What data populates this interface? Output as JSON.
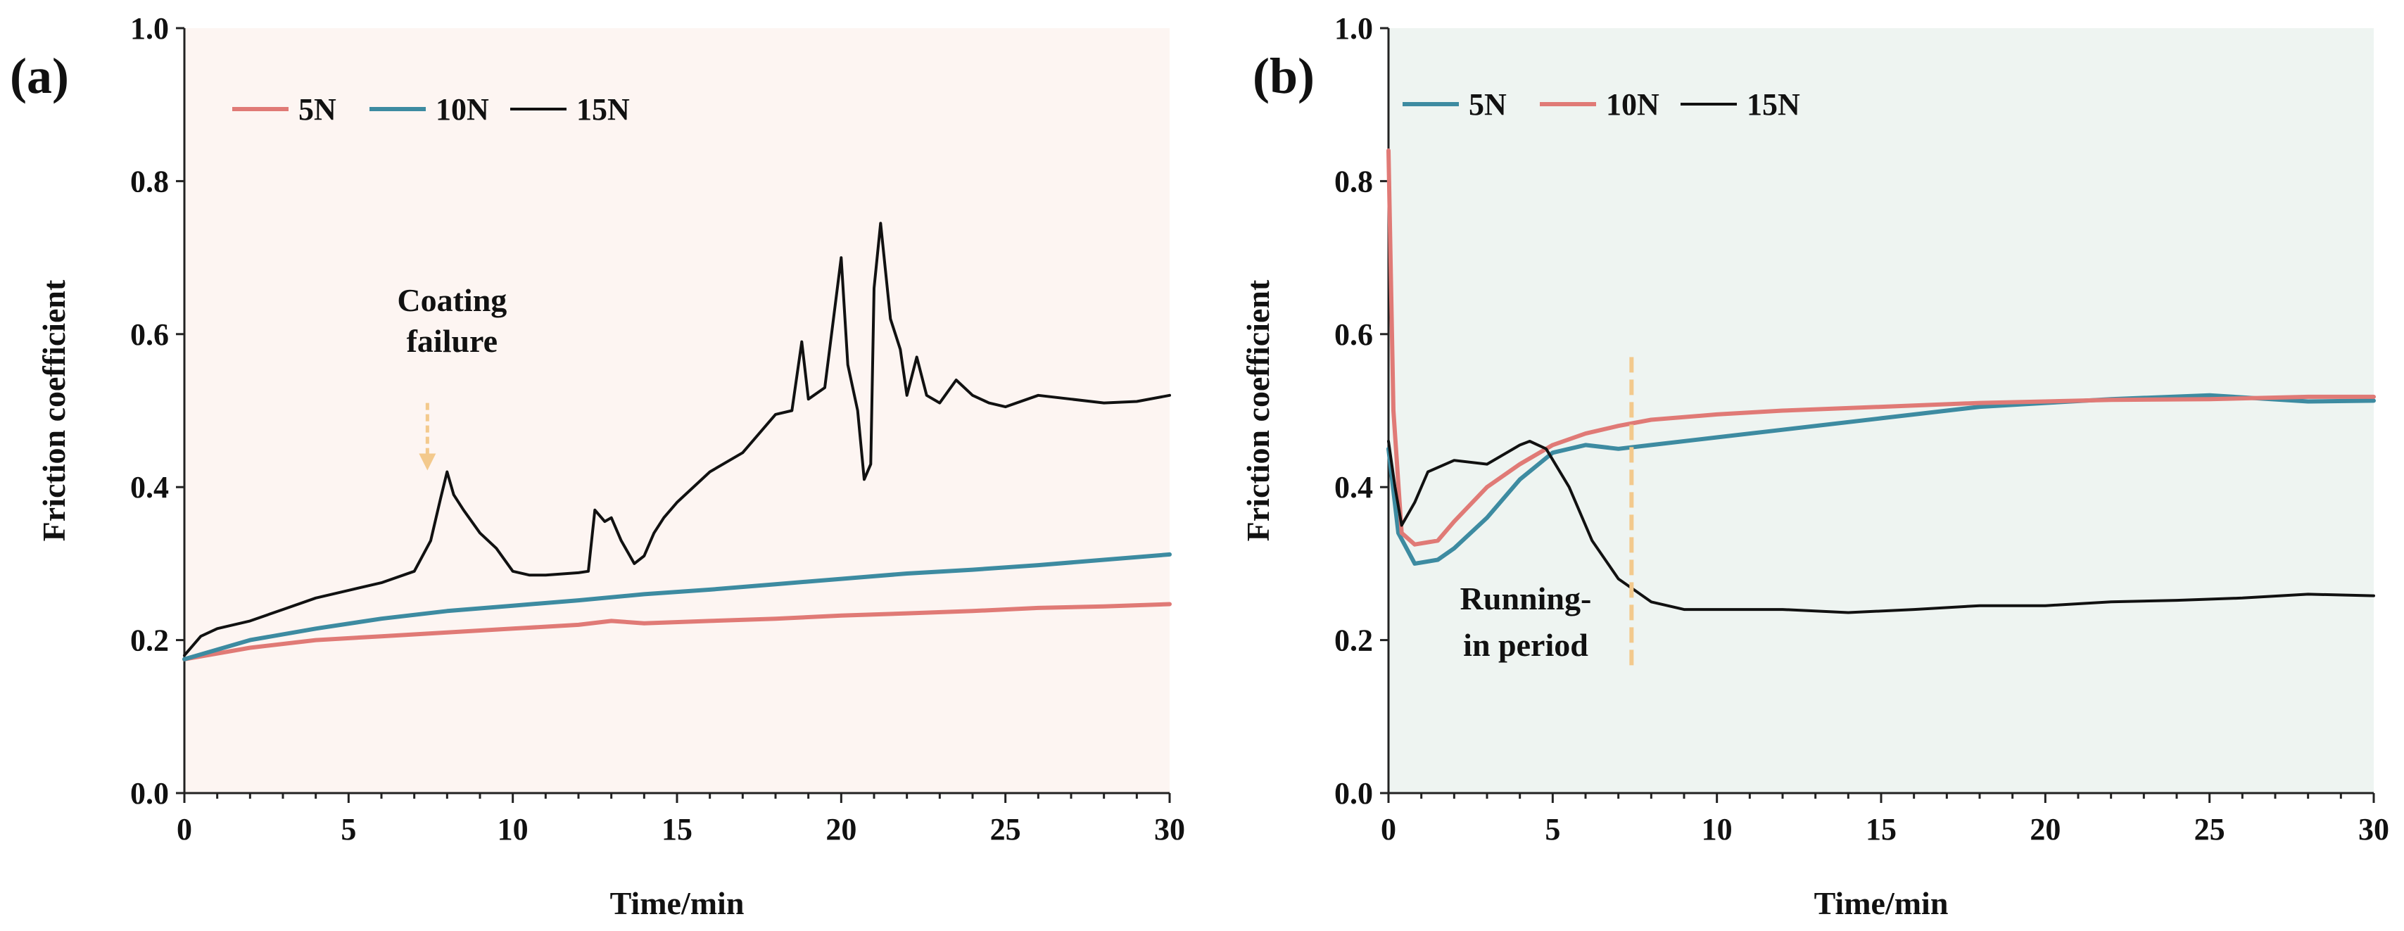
{
  "chart_data": [
    {
      "type": "line",
      "panel_label": "(a)",
      "xlabel": "Time/min",
      "ylabel": "Friction coefficient",
      "xlim": [
        0,
        30
      ],
      "ylim": [
        0.0,
        1.0
      ],
      "xticks": [
        "0",
        "5",
        "10",
        "15",
        "20",
        "25",
        "30"
      ],
      "yticks": [
        "0.0",
        "0.2",
        "0.4",
        "0.6",
        "0.8",
        "1.0"
      ],
      "background": "#fdf5f2",
      "grid": false,
      "legend_position": "top-left",
      "series": [
        {
          "name": "5N",
          "color": "#e07a76",
          "points": [
            [
              0,
              0.175
            ],
            [
              2,
              0.19
            ],
            [
              4,
              0.2
            ],
            [
              6,
              0.205
            ],
            [
              8,
              0.21
            ],
            [
              10,
              0.215
            ],
            [
              12,
              0.22
            ],
            [
              13,
              0.225
            ],
            [
              14,
              0.222
            ],
            [
              16,
              0.225
            ],
            [
              18,
              0.228
            ],
            [
              20,
              0.232
            ],
            [
              22,
              0.235
            ],
            [
              24,
              0.238
            ],
            [
              26,
              0.242
            ],
            [
              28,
              0.244
            ],
            [
              30,
              0.247
            ]
          ]
        },
        {
          "name": "10N",
          "color": "#3d8ba1",
          "points": [
            [
              0,
              0.175
            ],
            [
              2,
              0.2
            ],
            [
              4,
              0.215
            ],
            [
              6,
              0.228
            ],
            [
              8,
              0.238
            ],
            [
              10,
              0.245
            ],
            [
              12,
              0.252
            ],
            [
              14,
              0.26
            ],
            [
              16,
              0.266
            ],
            [
              18,
              0.273
            ],
            [
              20,
              0.28
            ],
            [
              22,
              0.287
            ],
            [
              24,
              0.292
            ],
            [
              26,
              0.298
            ],
            [
              28,
              0.305
            ],
            [
              30,
              0.312
            ]
          ]
        },
        {
          "name": "15N",
          "color": "#111111",
          "points": [
            [
              0,
              0.18
            ],
            [
              0.5,
              0.205
            ],
            [
              1,
              0.215
            ],
            [
              2,
              0.225
            ],
            [
              3,
              0.24
            ],
            [
              4,
              0.255
            ],
            [
              5,
              0.265
            ],
            [
              6,
              0.275
            ],
            [
              7,
              0.29
            ],
            [
              7.5,
              0.33
            ],
            [
              7.8,
              0.385
            ],
            [
              8.0,
              0.42
            ],
            [
              8.2,
              0.39
            ],
            [
              8.5,
              0.37
            ],
            [
              9,
              0.34
            ],
            [
              9.5,
              0.32
            ],
            [
              10,
              0.29
            ],
            [
              10.5,
              0.285
            ],
            [
              11,
              0.285
            ],
            [
              12,
              0.288
            ],
            [
              12.3,
              0.29
            ],
            [
              12.5,
              0.37
            ],
            [
              12.8,
              0.355
            ],
            [
              13,
              0.36
            ],
            [
              13.3,
              0.33
            ],
            [
              13.7,
              0.3
            ],
            [
              14,
              0.31
            ],
            [
              14.3,
              0.34
            ],
            [
              14.6,
              0.36
            ],
            [
              15,
              0.38
            ],
            [
              16,
              0.42
            ],
            [
              17,
              0.445
            ],
            [
              17.5,
              0.47
            ],
            [
              18,
              0.495
            ],
            [
              18.5,
              0.5
            ],
            [
              18.8,
              0.59
            ],
            [
              19,
              0.515
            ],
            [
              19.5,
              0.53
            ],
            [
              20,
              0.7
            ],
            [
              20.2,
              0.56
            ],
            [
              20.5,
              0.5
            ],
            [
              20.7,
              0.41
            ],
            [
              20.9,
              0.43
            ],
            [
              21.0,
              0.66
            ],
            [
              21.2,
              0.745
            ],
            [
              21.5,
              0.62
            ],
            [
              21.8,
              0.58
            ],
            [
              22,
              0.52
            ],
            [
              22.3,
              0.57
            ],
            [
              22.6,
              0.52
            ],
            [
              23,
              0.51
            ],
            [
              23.5,
              0.54
            ],
            [
              24,
              0.52
            ],
            [
              24.5,
              0.51
            ],
            [
              25,
              0.505
            ],
            [
              26,
              0.52
            ],
            [
              27,
              0.515
            ],
            [
              28,
              0.51
            ],
            [
              29,
              0.512
            ],
            [
              30,
              0.52
            ]
          ]
        }
      ],
      "annotations": [
        {
          "text_lines": [
            "Coating",
            "failure"
          ],
          "x": 7.4,
          "y_top": 0.63,
          "arrow_from": 0.51,
          "arrow_to": 0.42,
          "arrow_color": "#f3c98c"
        }
      ]
    },
    {
      "type": "line",
      "panel_label": "(b)",
      "xlabel": "Time/min",
      "ylabel": "Friction coefficient",
      "xlim": [
        0,
        30
      ],
      "ylim": [
        0.0,
        1.0
      ],
      "xticks": [
        "0",
        "5",
        "10",
        "15",
        "20",
        "25",
        "30"
      ],
      "yticks": [
        "0.0",
        "0.2",
        "0.4",
        "0.6",
        "0.8",
        "1.0"
      ],
      "background": "#eef4f1",
      "grid": false,
      "legend_position": "top-left",
      "series": [
        {
          "name": "5N",
          "color": "#3d8ba1",
          "points": [
            [
              0,
              0.45
            ],
            [
              0.3,
              0.34
            ],
            [
              0.8,
              0.3
            ],
            [
              1.5,
              0.305
            ],
            [
              2,
              0.32
            ],
            [
              3,
              0.36
            ],
            [
              4,
              0.41
            ],
            [
              5,
              0.445
            ],
            [
              6,
              0.455
            ],
            [
              7,
              0.45
            ],
            [
              8,
              0.455
            ],
            [
              10,
              0.465
            ],
            [
              12,
              0.475
            ],
            [
              15,
              0.49
            ],
            [
              18,
              0.505
            ],
            [
              20,
              0.51
            ],
            [
              22,
              0.515
            ],
            [
              25,
              0.52
            ],
            [
              28,
              0.512
            ],
            [
              30,
              0.513
            ]
          ]
        },
        {
          "name": "10N",
          "color": "#e07a76",
          "points": [
            [
              0,
              0.84
            ],
            [
              0.15,
              0.5
            ],
            [
              0.4,
              0.34
            ],
            [
              0.8,
              0.325
            ],
            [
              1.5,
              0.33
            ],
            [
              2,
              0.355
            ],
            [
              3,
              0.4
            ],
            [
              4,
              0.43
            ],
            [
              5,
              0.455
            ],
            [
              6,
              0.47
            ],
            [
              7,
              0.48
            ],
            [
              8,
              0.488
            ],
            [
              10,
              0.495
            ],
            [
              12,
              0.5
            ],
            [
              15,
              0.505
            ],
            [
              18,
              0.51
            ],
            [
              20,
              0.512
            ],
            [
              22,
              0.514
            ],
            [
              25,
              0.515
            ],
            [
              28,
              0.518
            ],
            [
              30,
              0.518
            ]
          ]
        },
        {
          "name": "15N",
          "color": "#111111",
          "points": [
            [
              0,
              0.46
            ],
            [
              0.2,
              0.4
            ],
            [
              0.4,
              0.35
            ],
            [
              0.8,
              0.38
            ],
            [
              1.2,
              0.42
            ],
            [
              2,
              0.435
            ],
            [
              3,
              0.43
            ],
            [
              4,
              0.455
            ],
            [
              4.3,
              0.46
            ],
            [
              4.8,
              0.45
            ],
            [
              5.5,
              0.4
            ],
            [
              6.2,
              0.33
            ],
            [
              7,
              0.28
            ],
            [
              7.5,
              0.265
            ],
            [
              8,
              0.25
            ],
            [
              9,
              0.24
            ],
            [
              10,
              0.24
            ],
            [
              12,
              0.24
            ],
            [
              14,
              0.236
            ],
            [
              16,
              0.24
            ],
            [
              18,
              0.245
            ],
            [
              20,
              0.245
            ],
            [
              22,
              0.25
            ],
            [
              24,
              0.252
            ],
            [
              26,
              0.255
            ],
            [
              28,
              0.26
            ],
            [
              30,
              0.258
            ]
          ]
        }
      ],
      "annotations": [
        {
          "text_lines": [
            "Running-",
            "in",
            "period"
          ],
          "dashed_line_x": 7.4,
          "dashed_from": 0.57,
          "dashed_to": 0.16,
          "dashed_color": "#f3c98c"
        }
      ]
    }
  ]
}
